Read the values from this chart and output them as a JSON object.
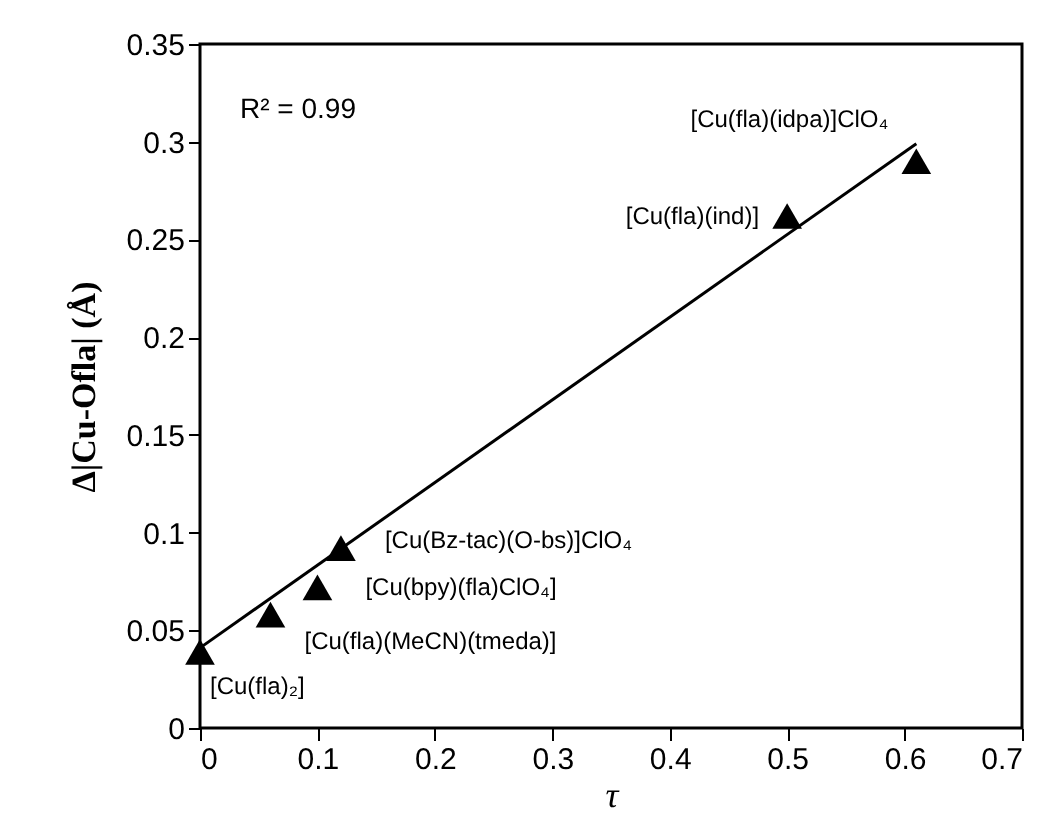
{
  "chart_data": {
    "type": "scatter",
    "xlabel": "τ",
    "ylabel": "Δ|Cu-Ofla| (Å)",
    "xlim": [
      0,
      0.7
    ],
    "xticks": [
      0,
      0.1,
      0.2,
      0.3,
      0.4,
      0.5,
      0.6,
      0.7
    ],
    "ylim": [
      0,
      0.35
    ],
    "yticks": [
      0,
      0.05,
      0.1,
      0.15,
      0.2,
      0.25,
      0.3,
      0.35
    ],
    "marker": "triangle",
    "series": [
      {
        "color": "#000000",
        "x": [
          0,
          0.06,
          0.1,
          0.12,
          0.5,
          0.61
        ],
        "values": [
          0.039,
          0.058,
          0.072,
          0.092,
          0.262,
          0.29
        ]
      },
      {
        "type": "line",
        "color": "#000000",
        "x": [
          0,
          0.61
        ],
        "values": [
          0.041,
          0.299
        ],
        "marker": "none",
        "line_style": "solid"
      }
    ],
    "annotations": [
      "R² = 0.99",
      {
        "text": "[Cu(fla)₂]",
        "x": 0,
        "y": 0.039
      },
      {
        "text": "[Cu(fla)(MeCN)(tmeda)]",
        "x": 0.06,
        "y": 0.058
      },
      {
        "text": "[Cu(bpy)(fla)ClO₄]",
        "x": 0.1,
        "y": 0.072
      },
      {
        "text": "[Cu(Bz-tac)(O-bs)]ClO₄",
        "x": 0.12,
        "y": 0.092
      },
      {
        "text": "[Cu(fla)(ind)]",
        "x": 0.5,
        "y": 0.262
      },
      {
        "text": "[Cu(fla)(idpa)]ClO₄",
        "x": 0.61,
        "y": 0.29
      }
    ]
  }
}
